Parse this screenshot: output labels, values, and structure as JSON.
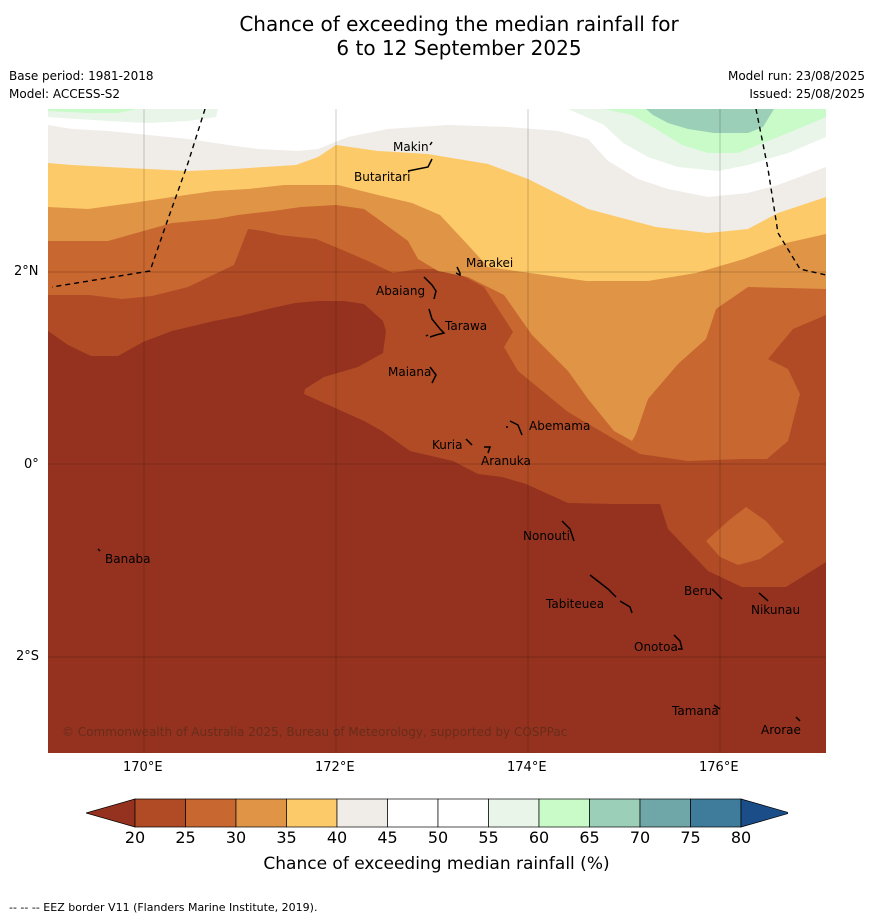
{
  "title": {
    "line1": "Chance of exceeding the median rainfall for",
    "line2": "6 to 12 September 2025"
  },
  "meta": {
    "base_period": "Base period: 1981-2018",
    "model": "Model: ACCESS-S2",
    "model_run": "Model run: 23/08/2025",
    "issued": "Issued: 25/08/2025"
  },
  "map": {
    "copyright": "© Commonwealth of Australia 2025, Bureau of Meteorology, supported by COSPPac",
    "lat_ticks": [
      "2°N",
      "0°",
      "2°S"
    ],
    "lon_ticks": [
      "170°E",
      "172°E",
      "174°E",
      "176°E"
    ],
    "places": [
      "Makin",
      "Butaritari",
      "Marakei",
      "Abaiang",
      "Tarawa",
      "Maiana",
      "Abemama",
      "Kuria",
      "Aranuka",
      "Nonouti",
      "Banaba",
      "Beru",
      "Nikunau",
      "Tabiteuea",
      "Onotoa",
      "Tamana",
      "Arorae"
    ]
  },
  "colorbar": {
    "ticks": [
      "20",
      "25",
      "30",
      "35",
      "40",
      "45",
      "50",
      "55",
      "60",
      "65",
      "70",
      "75",
      "80"
    ],
    "colors": [
      "#b04b25",
      "#c8672f",
      "#e09446",
      "#fdca69",
      "#f0ece7",
      "#ffffff",
      "#ffffff",
      "#e9f5e9",
      "#c8fbc8",
      "#9ccfb8",
      "#6fa7a8",
      "#3f7b9b"
    ],
    "under_color": "#95321f",
    "over_color": "#1b4e88",
    "title": "Chance of exceeding median rainfall (%)"
  },
  "footnote": "-- -- -- EEZ border V11 (Flanders Marine Institute, 2019)."
}
